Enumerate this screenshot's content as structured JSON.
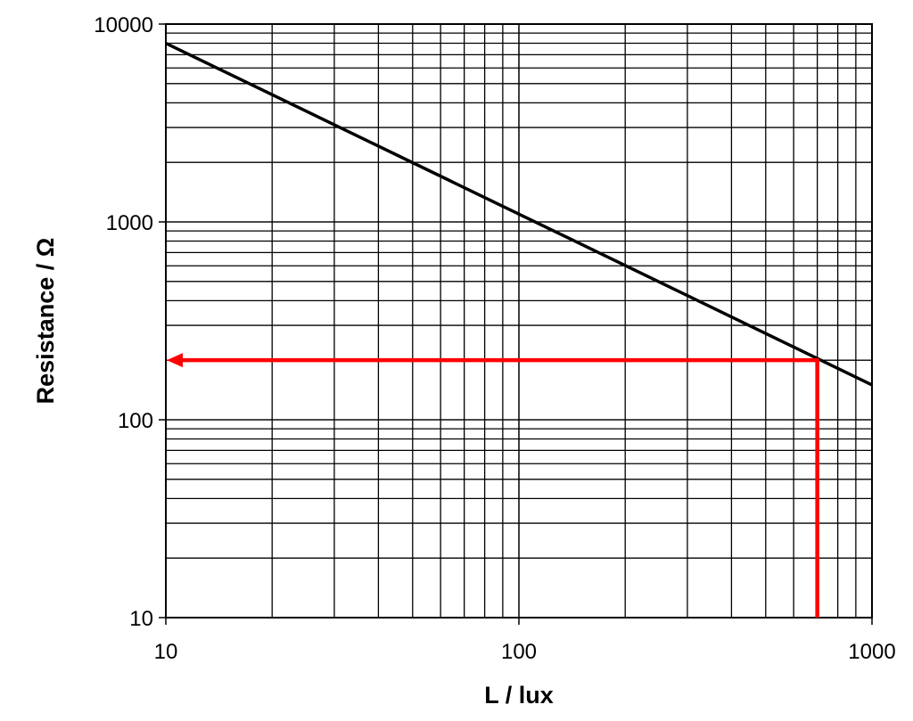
{
  "chart_data": {
    "type": "line",
    "title": "",
    "xlabel": "L / lux",
    "ylabel": "Resistance / Ω",
    "x_scale": "log",
    "y_scale": "log",
    "xlim": [
      10,
      1000
    ],
    "ylim": [
      10,
      10000
    ],
    "x_tick_labels": [
      "10",
      "100",
      "1000"
    ],
    "y_tick_labels": [
      "10",
      "100",
      "1000",
      "10000"
    ],
    "grid": true,
    "series": [
      {
        "x": [
          10,
          1000
        ],
        "y": [
          8000,
          150
        ],
        "color": "#000000"
      }
    ],
    "annotation": {
      "type": "reading-arrow",
      "color": "#ff0000",
      "x": 700,
      "y": 200
    }
  }
}
